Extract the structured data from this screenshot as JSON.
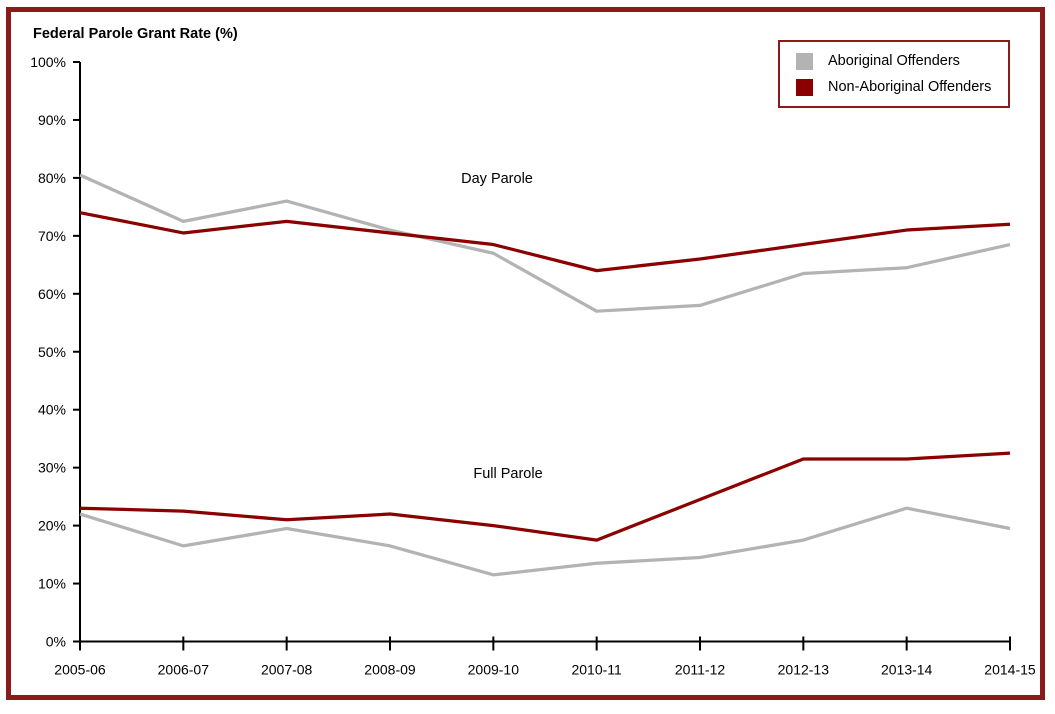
{
  "title": "Federal Parole Grant Rate (%)",
  "frame": {
    "border_color": "#8B1A1A"
  },
  "legend": {
    "position": "top-right",
    "items": [
      {
        "label": "Aboriginal Offenders",
        "color": "#b3b3b3"
      },
      {
        "label": "Non-Aboriginal Offenders",
        "color": "#8B0000"
      }
    ]
  },
  "chart_data": {
    "type": "line",
    "title": "Federal Parole Grant Rate (%)",
    "x": [
      "2005-06",
      "2006-07",
      "2007-08",
      "2008-09",
      "2009-10",
      "2010-11",
      "2011-12",
      "2012-13",
      "2013-14",
      "2014-15"
    ],
    "xlabel": "",
    "ylabel": "Federal Parole Grant Rate (%)",
    "ylim": [
      0,
      100
    ],
    "yticks": [
      "0%",
      "10%",
      "20%",
      "30%",
      "40%",
      "50%",
      "60%",
      "70%",
      "80%",
      "90%",
      "100%"
    ],
    "grid": false,
    "axis_color": "#000000",
    "groups": [
      {
        "name": "Day Parole",
        "series": [
          {
            "name": "Aboriginal Offenders",
            "color": "#b3b3b3",
            "values": [
              80.5,
              72.5,
              76,
              71,
              67,
              57,
              58,
              63.5,
              64.5,
              68.5
            ]
          },
          {
            "name": "Non-Aboriginal Offenders",
            "color": "#8B0000",
            "values": [
              74,
              70.5,
              72.5,
              70.5,
              68.5,
              64,
              66,
              68.5,
              71,
              72
            ]
          }
        ]
      },
      {
        "name": "Full Parole",
        "series": [
          {
            "name": "Aboriginal Offenders",
            "color": "#b3b3b3",
            "values": [
              22,
              16.5,
              19.5,
              16.5,
              11.5,
              13.5,
              14.5,
              17.5,
              23,
              19.5
            ]
          },
          {
            "name": "Non-Aboriginal Offenders",
            "color": "#8B0000",
            "values": [
              23,
              22.5,
              21,
              22,
              20,
              17.5,
              24.5,
              31.5,
              31.5,
              32.5
            ]
          }
        ]
      }
    ],
    "annotations": [
      {
        "text": "Day Parole",
        "x": 497,
        "y": 178
      },
      {
        "text": "Full Parole",
        "x": 508,
        "y": 473
      }
    ]
  }
}
